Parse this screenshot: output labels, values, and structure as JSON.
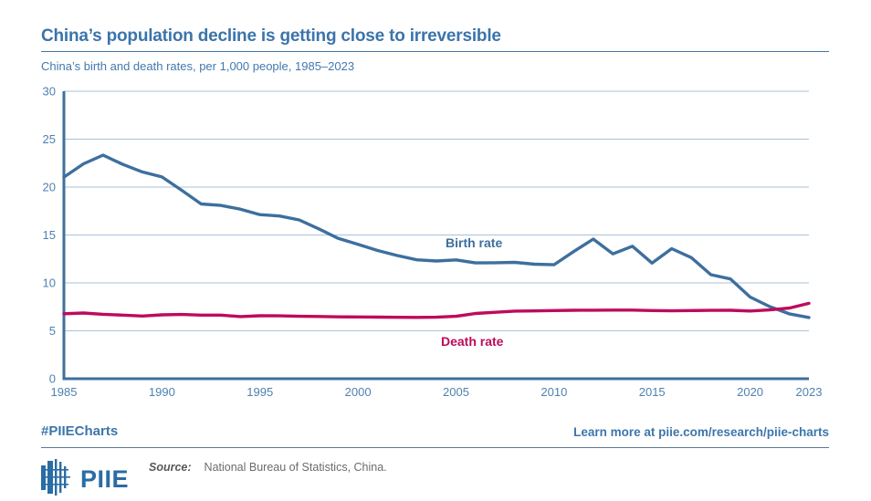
{
  "header": {
    "title": "China’s population decline is getting close to irreversible",
    "subtitle": "China’s birth and death rates, per 1,000 people, 1985–2023"
  },
  "chart_data": {
    "type": "line",
    "title": "China’s birth and death rates, per 1,000 people, 1985–2023",
    "xlabel": "",
    "ylabel": "",
    "ylim": [
      0,
      30
    ],
    "y_ticks": [
      0,
      5,
      10,
      15,
      20,
      25,
      30
    ],
    "x_ticks": [
      1985,
      1990,
      1995,
      2000,
      2005,
      2010,
      2015,
      2020,
      2023
    ],
    "grid": "horizontal",
    "legend_position": "inline-labels",
    "x": [
      1985,
      1986,
      1987,
      1988,
      1989,
      1990,
      1991,
      1992,
      1993,
      1994,
      1995,
      1996,
      1997,
      1998,
      1999,
      2000,
      2001,
      2002,
      2003,
      2004,
      2005,
      2006,
      2007,
      2008,
      2009,
      2010,
      2011,
      2012,
      2013,
      2014,
      2015,
      2016,
      2017,
      2018,
      2019,
      2020,
      2021,
      2022,
      2023
    ],
    "series": [
      {
        "name": "Birth rate",
        "color": "#3d6f9e",
        "values": [
          21.04,
          22.43,
          23.33,
          22.37,
          21.58,
          21.06,
          19.68,
          18.24,
          18.09,
          17.7,
          17.12,
          16.98,
          16.57,
          15.64,
          14.64,
          14.03,
          13.38,
          12.86,
          12.41,
          12.29,
          12.4,
          12.09,
          12.1,
          12.14,
          11.95,
          11.9,
          13.27,
          14.57,
          13.03,
          13.83,
          12.07,
          13.57,
          12.64,
          10.86,
          10.41,
          8.52,
          7.52,
          6.77,
          6.39
        ]
      },
      {
        "name": "Death rate",
        "color": "#be0b5c",
        "values": [
          6.78,
          6.86,
          6.72,
          6.64,
          6.54,
          6.67,
          6.7,
          6.64,
          6.64,
          6.49,
          6.57,
          6.56,
          6.51,
          6.5,
          6.46,
          6.45,
          6.43,
          6.41,
          6.4,
          6.42,
          6.51,
          6.81,
          6.93,
          7.06,
          7.08,
          7.11,
          7.14,
          7.15,
          7.16,
          7.16,
          7.11,
          7.09,
          7.11,
          7.13,
          7.14,
          7.07,
          7.18,
          7.37,
          7.87
        ]
      }
    ],
    "series_label_pos": [
      {
        "x": 488,
        "y": 186
      },
      {
        "x": 483,
        "y": 294
      }
    ]
  },
  "colors": {
    "grid": "#a9c3d9",
    "axis": "#3d6f9e",
    "tick": "#4e81b1"
  },
  "footer": {
    "hashtag": "#PIIECharts",
    "learn_more": "Learn more at piie.com/research/piie-charts",
    "logo_text": "PIIE",
    "source_label": "Source:",
    "source_text": "National Bureau of Statistics, China."
  }
}
